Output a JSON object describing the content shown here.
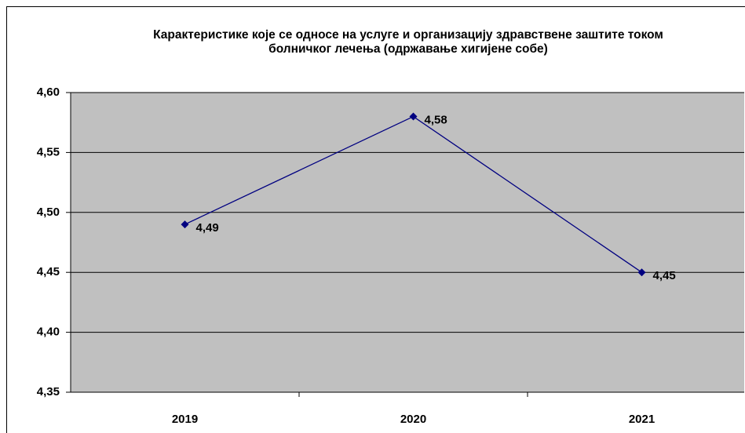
{
  "chart_data": {
    "type": "line",
    "title": "Карактеристике које се односе на услуге и организацију здравствене заштите током болничког лечења (одржавање хигијене собе)",
    "categories": [
      "2019",
      "2020",
      "2021"
    ],
    "series": [
      {
        "color": "#000080",
        "values": [
          4.49,
          4.58,
          4.45
        ],
        "value_labels": [
          "4,49",
          "4,58",
          "4,45"
        ]
      }
    ],
    "ylim": [
      4.35,
      4.6
    ],
    "yticks": [
      {
        "value": 4.35,
        "label": "4,35"
      },
      {
        "value": 4.4,
        "label": "4,40"
      },
      {
        "value": 4.45,
        "label": "4,45"
      },
      {
        "value": 4.5,
        "label": "4,50"
      },
      {
        "value": 4.55,
        "label": "4,55"
      },
      {
        "value": 4.6,
        "label": "4,60"
      }
    ],
    "grid": true
  }
}
